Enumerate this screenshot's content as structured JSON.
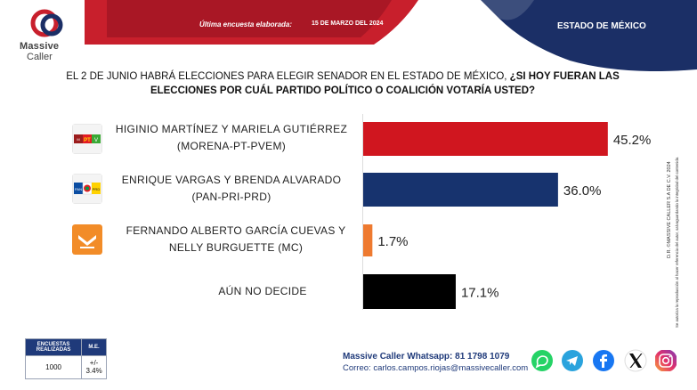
{
  "header": {
    "brand_line1": "Massive",
    "brand_line2": "Caller",
    "survey_label": "Última encuesta elaborada:",
    "survey_date": "15 DE MARZO DEL 2024",
    "state": "ESTADO DE MÉXICO"
  },
  "question": {
    "line1_plain": "EL 2 DE JUNIO HABRÁ ELECCIONES PARA ELEGIR SENADOR EN EL ESTADO DE MÉXICO, ",
    "line1_bold": "¿SI HOY FUERAN LAS",
    "line2_bold": "ELECCIONES POR CUÁL PARTIDO POLÍTICO O COALICIÓN VOTARÍA USTED?"
  },
  "chart_data": {
    "type": "bar",
    "orientation": "horizontal",
    "categories": [
      "HIGINIO MARTÍNEZ Y MARIELA GUTIÉRREZ (MORENA-PT-PVEM)",
      "ENRIQUE VARGAS Y BRENDA ALVARADO (PAN-PRI-PRD)",
      "FERNANDO ALBERTO GARCÍA CUEVAS Y NELLY BURGUETTE (MC)",
      "AÚN NO DECIDE"
    ],
    "values": [
      45.2,
      36.0,
      1.7,
      17.1
    ],
    "value_labels": [
      "45.2%",
      "36.0%",
      "1.7%",
      "17.1%"
    ],
    "colors": [
      "#d0161f",
      "#17336e",
      "#ee7a30",
      "#000000"
    ],
    "xlim": [
      0,
      100
    ]
  },
  "rows": [
    {
      "line1": "HIGINIO MARTÍNEZ Y MARIELA GUTIÉRREZ",
      "line2": "(MORENA-PT-PVEM)",
      "logo": "morena-pt-pvem-logo"
    },
    {
      "line1": "ENRIQUE VARGAS Y BRENDA ALVARADO",
      "line2": "(PAN-PRI-PRD)",
      "logo": "pan-pri-prd-logo"
    },
    {
      "line1": "FERNANDO ALBERTO GARCÍA CUEVAS Y",
      "line2": "NELLY BURGUETTE (MC)",
      "logo": "movimiento-ciudadano-logo"
    },
    {
      "line1": "AÚN NO DECIDE",
      "line2": "",
      "logo": ""
    }
  ],
  "sidebar": {
    "text1": "D.R. ©MASSIVE CALLER S.A DE C.V. 2024",
    "text2": "Se autoriza la reproducción al hacer referencia del autor, salvaguardando la integridad del contenido."
  },
  "footer": {
    "col1_header": "ENCUESTAS REALIZADAS",
    "col2_header": "M.E.",
    "col1_value": "1000",
    "col2_value": "+/- 3.4%",
    "contact_line1": "Massive Caller Whatsapp: 81 1798 1079",
    "contact_line2": "Correo: carlos.campos.riojas@massivecaller.com",
    "social_icons": [
      "whatsapp-icon",
      "telegram-icon",
      "facebook-icon",
      "x-icon",
      "instagram-icon"
    ]
  }
}
